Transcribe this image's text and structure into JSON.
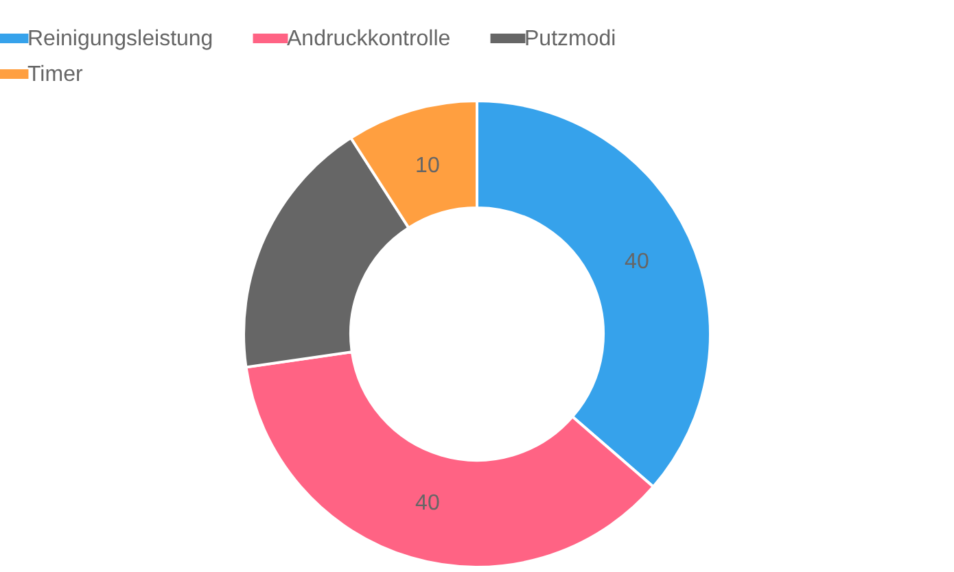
{
  "chart_data": {
    "type": "donut",
    "categories": [
      "Reinigungsleistung",
      "Andruckkontrolle",
      "Putzmodi",
      "Timer"
    ],
    "values": [
      40,
      40,
      20,
      10
    ],
    "colors": [
      "#36a2eb",
      "#ff6384",
      "#666666",
      "#ff9f40"
    ],
    "value_labels": [
      "40",
      "40",
      null,
      "10"
    ],
    "legend": "top"
  }
}
